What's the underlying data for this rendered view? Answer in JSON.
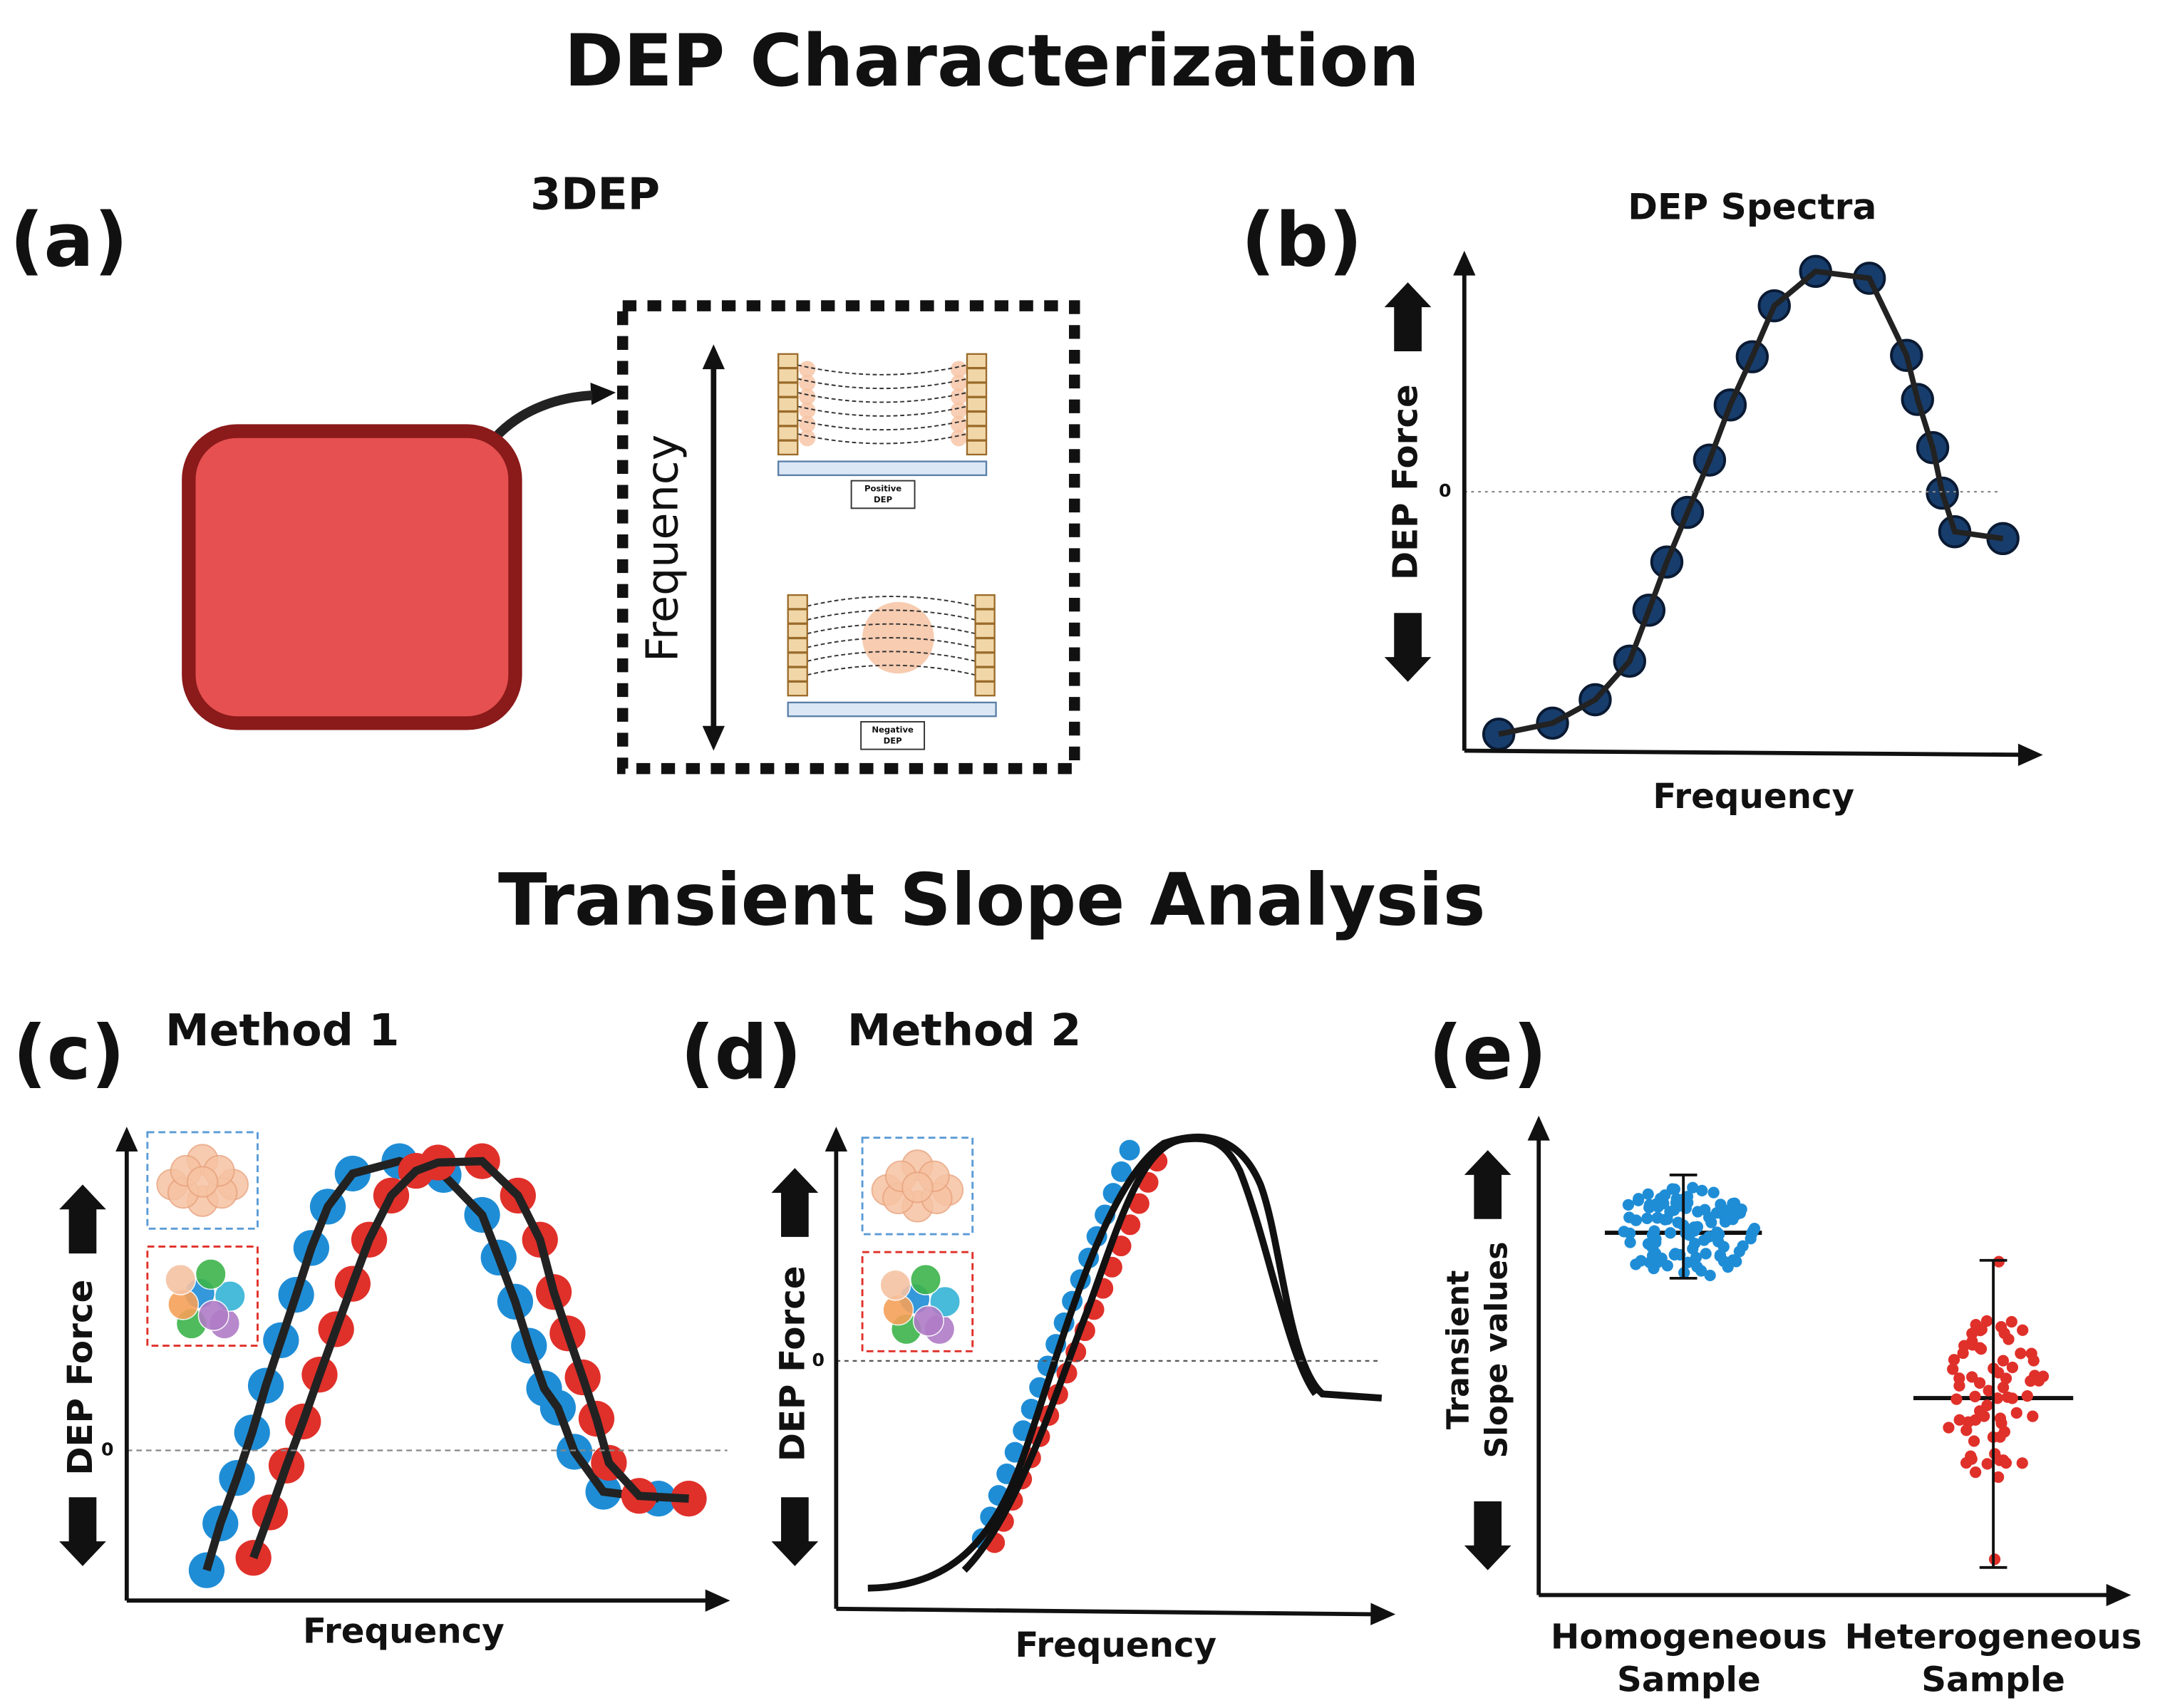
{
  "title": "DEP Characterization",
  "section_title": "Transient Slope Analysis",
  "panel_a": {
    "label": "(a)",
    "title": "3DEP",
    "axis_label": "Frequency",
    "positive_label": [
      "Positive",
      "DEP"
    ],
    "negative_label": [
      "Negative",
      "DEP"
    ]
  },
  "panel_b": {
    "label": "(b)",
    "title": "DEP Spectra",
    "y_label": "DEP Force",
    "x_label": "Frequency",
    "zero_label": "0"
  },
  "panel_c": {
    "label": "(c)",
    "title": "Method 1",
    "y_label": "DEP Force",
    "x_label": "Frequency",
    "zero_label": "0"
  },
  "panel_d": {
    "label": "(d)",
    "title": "Method 2",
    "y_label": "DEP Force",
    "x_label": "Frequency",
    "zero_label": "0"
  },
  "panel_e": {
    "label": "(e)",
    "y_label": [
      "Transient",
      "Slope values"
    ],
    "categories": [
      [
        "Homogeneous",
        "Sample"
      ],
      [
        "Heterogeneous",
        "Sample"
      ]
    ]
  }
}
